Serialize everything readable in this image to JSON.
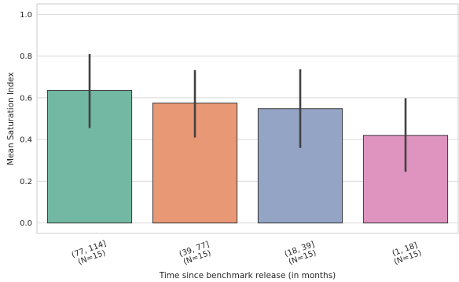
{
  "chart_data": {
    "type": "bar",
    "title": "",
    "xlabel": "Time since benchmark release (in months)",
    "ylabel": "Mean Saturation Index",
    "ylim": [
      -0.05,
      1.05
    ],
    "yticks": [
      "0.0",
      "0.2",
      "0.4",
      "0.6",
      "0.8",
      "1.0"
    ],
    "grid": true,
    "categories": [
      {
        "line1": "(77, 114]",
        "line2": "(N=15)"
      },
      {
        "line1": "(39, 77]",
        "line2": "(N=15)"
      },
      {
        "line1": "(18, 39]",
        "line2": "(N=15)"
      },
      {
        "line1": "(1, 18]",
        "line2": "(N=15)"
      }
    ],
    "values": [
      0.635,
      0.575,
      0.548,
      0.42
    ],
    "error_low": [
      0.455,
      0.41,
      0.36,
      0.245
    ],
    "error_high": [
      0.81,
      0.733,
      0.737,
      0.598
    ],
    "colors": [
      "#73b8a2",
      "#e99875",
      "#93a4c5",
      "#de94be"
    ]
  }
}
